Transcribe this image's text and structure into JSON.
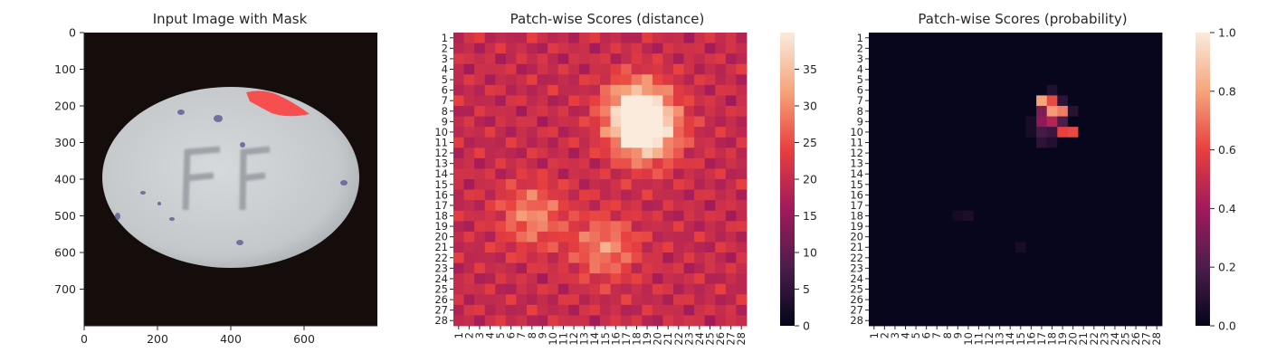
{
  "chart_data": [
    {
      "type": "image",
      "title": "Input Image with Mask",
      "xlabel": "",
      "ylabel": "",
      "xlim": [
        0,
        800
      ],
      "ylim": [
        800,
        0
      ],
      "xticks": [
        "0",
        "200",
        "400",
        "600"
      ],
      "yticks": [
        "0",
        "100",
        "200",
        "300",
        "400",
        "500",
        "600",
        "700"
      ],
      "image_content": "white oval pill embossed with letters FF on dark background, red mask over upper right edge",
      "mask_color": "#ff3a3a"
    },
    {
      "type": "heatmap",
      "title": "Patch-wise Scores (distance)",
      "xlabel": "",
      "ylabel": "",
      "rows": [
        "1",
        "2",
        "3",
        "4",
        "5",
        "6",
        "7",
        "8",
        "9",
        "10",
        "11",
        "12",
        "13",
        "14",
        "15",
        "16",
        "17",
        "18",
        "19",
        "20",
        "21",
        "22",
        "23",
        "24",
        "25",
        "26",
        "27",
        "28"
      ],
      "cols": [
        "1",
        "2",
        "3",
        "4",
        "5",
        "6",
        "7",
        "8",
        "9",
        "10",
        "11",
        "12",
        "13",
        "14",
        "15",
        "16",
        "17",
        "18",
        "19",
        "20",
        "21",
        "22",
        "23",
        "24",
        "25",
        "26",
        "27",
        "28"
      ],
      "colorbar_range": [
        0,
        40
      ],
      "colorbar_ticks": [
        "0",
        "5",
        "10",
        "15",
        "20",
        "25",
        "30",
        "35"
      ],
      "colormap": "rocket",
      "hotspots": [
        {
          "row": 8,
          "col": 18,
          "value": 39
        },
        {
          "row": 10,
          "col": 19,
          "value": 38
        },
        {
          "row": 18,
          "col": 8,
          "value": 30
        },
        {
          "row": 21,
          "col": 15,
          "value": 30
        }
      ],
      "background_range": [
        16,
        24
      ]
    },
    {
      "type": "heatmap",
      "title": "Patch-wise Scores (probability)",
      "xlabel": "",
      "ylabel": "",
      "rows": [
        "1",
        "2",
        "3",
        "4",
        "5",
        "6",
        "7",
        "8",
        "9",
        "10",
        "11",
        "12",
        "13",
        "14",
        "15",
        "16",
        "17",
        "18",
        "19",
        "20",
        "21",
        "22",
        "23",
        "24",
        "25",
        "26",
        "27",
        "28"
      ],
      "cols": [
        "1",
        "2",
        "3",
        "4",
        "5",
        "6",
        "7",
        "8",
        "9",
        "10",
        "11",
        "12",
        "13",
        "14",
        "15",
        "16",
        "17",
        "18",
        "19",
        "20",
        "21",
        "22",
        "23",
        "24",
        "25",
        "26",
        "27",
        "28"
      ],
      "colorbar_range": [
        0,
        1
      ],
      "colorbar_ticks": [
        "0.0",
        "0.2",
        "0.4",
        "0.6",
        "0.8",
        "1.0"
      ],
      "colormap": "rocket",
      "cells": [
        {
          "row": 7,
          "col": 17,
          "value": 0.8
        },
        {
          "row": 7,
          "col": 18,
          "value": 0.62
        },
        {
          "row": 7,
          "col": 19,
          "value": 0.12
        },
        {
          "row": 8,
          "col": 17,
          "value": 0.32
        },
        {
          "row": 8,
          "col": 18,
          "value": 0.78
        },
        {
          "row": 8,
          "col": 19,
          "value": 0.72
        },
        {
          "row": 8,
          "col": 20,
          "value": 0.1
        },
        {
          "row": 9,
          "col": 17,
          "value": 0.35
        },
        {
          "row": 9,
          "col": 18,
          "value": 0.45
        },
        {
          "row": 9,
          "col": 19,
          "value": 0.2
        },
        {
          "row": 10,
          "col": 17,
          "value": 0.18
        },
        {
          "row": 10,
          "col": 18,
          "value": 0.15
        },
        {
          "row": 10,
          "col": 19,
          "value": 0.6
        },
        {
          "row": 10,
          "col": 20,
          "value": 0.62
        },
        {
          "row": 11,
          "col": 17,
          "value": 0.12
        },
        {
          "row": 11,
          "col": 18,
          "value": 0.08
        },
        {
          "row": 6,
          "col": 18,
          "value": 0.08
        },
        {
          "row": 9,
          "col": 16,
          "value": 0.06
        },
        {
          "row": 10,
          "col": 16,
          "value": 0.06
        },
        {
          "row": 18,
          "col": 9,
          "value": 0.05
        },
        {
          "row": 18,
          "col": 10,
          "value": 0.07
        },
        {
          "row": 21,
          "col": 15,
          "value": 0.06
        }
      ]
    }
  ]
}
